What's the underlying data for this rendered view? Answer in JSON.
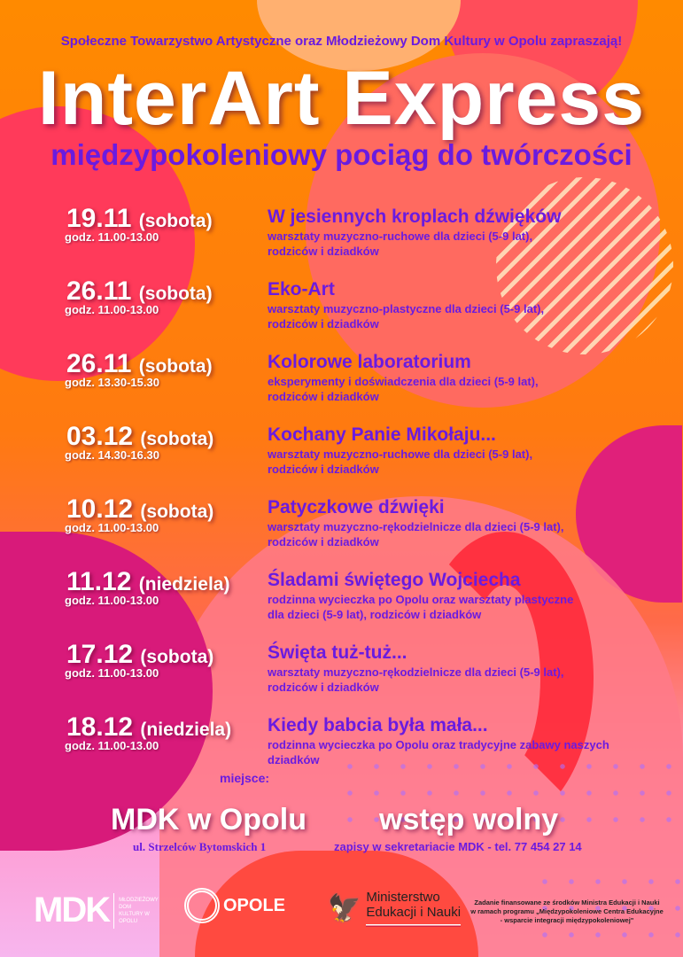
{
  "header": "Społeczne Towarzystwo Artystyczne oraz Młodzieżowy Dom Kultury w Opolu zapraszają!",
  "title": "InterArt Express",
  "subtitle": "międzypokoleniowy pociąg do twórczości",
  "events": [
    {
      "date": "19.11",
      "day": "(sobota)",
      "time": "godz. 11.00-13.00",
      "title": "W jesiennych kroplach dźwięków",
      "desc1": "warsztaty muzyczno-ruchowe dla dzieci (5-9 lat),",
      "desc2": "rodziców i dziadków"
    },
    {
      "date": "26.11",
      "day": "(sobota)",
      "time": "godz. 11.00-13.00",
      "title": "Eko-Art",
      "desc1": "warsztaty muzyczno-plastyczne dla dzieci (5-9 lat),",
      "desc2": "rodziców i dziadków"
    },
    {
      "date": "26.11",
      "day": "(sobota)",
      "time": "godz. 13.30-15.30",
      "title": "Kolorowe laboratorium",
      "desc1": "eksperymenty i doświadczenia dla dzieci (5-9 lat),",
      "desc2": "rodziców i dziadków"
    },
    {
      "date": "03.12",
      "day": "(sobota)",
      "time": "godz. 14.30-16.30",
      "title": "Kochany Panie Mikołaju...",
      "desc1": "warsztaty muzyczno-ruchowe dla dzieci (5-9 lat),",
      "desc2": "rodziców i dziadków"
    },
    {
      "date": "10.12",
      "day": "(sobota)",
      "time": "godz. 11.00-13.00",
      "title": "Patyczkowe dźwięki",
      "desc1": "warsztaty muzyczno-rękodzielnicze dla dzieci (5-9 lat),",
      "desc2": "rodziców i dziadków"
    },
    {
      "date": "11.12",
      "day": "(niedziela)",
      "time": "godz. 11.00-13.00",
      "title": "Śladami świętego Wojciecha",
      "desc1": "rodzinna wycieczka po Opolu oraz warsztaty plastyczne",
      "desc2": "dla dzieci (5-9 lat), rodziców i dziadków"
    },
    {
      "date": "17.12",
      "day": "(sobota)",
      "time": "godz. 11.00-13.00",
      "title": "Święta tuż-tuż...",
      "desc1": "warsztaty muzyczno-rękodzielnicze dla dzieci (5-9 lat),",
      "desc2": "rodziców i dziadków"
    },
    {
      "date": "18.12",
      "day": "(niedziela)",
      "time": "godz. 11.00-13.00",
      "title": "Kiedy babcia była mała...",
      "desc1": "rodzinna wycieczka po Opolu oraz tradycyjne zabawy naszych",
      "desc2": "dziadków"
    }
  ],
  "venue": {
    "label": "miejsce:",
    "name": "MDK w Opolu",
    "address": "ul. Strzelców Bytomskich 1"
  },
  "entry": {
    "title": "wstęp wolny",
    "note": "zapisy w sekretariacie MDK - tel. 77 454 27 14"
  },
  "logos": {
    "mdk": "MDK",
    "mdk_text": "MŁODZIEŻOWY DOM KULTURY W OPOLU",
    "opole": "OPOLE",
    "ministry1": "Ministerstwo",
    "ministry2": "Edukacji i Nauki"
  },
  "funding": [
    "Zadanie finansowane ze środków Ministra Edukacji i Nauki",
    "w ramach programu „Międzypokoleniowe Centra Edukacyjne",
    "- wsparcie integracji międzypokoleniowej\""
  ]
}
